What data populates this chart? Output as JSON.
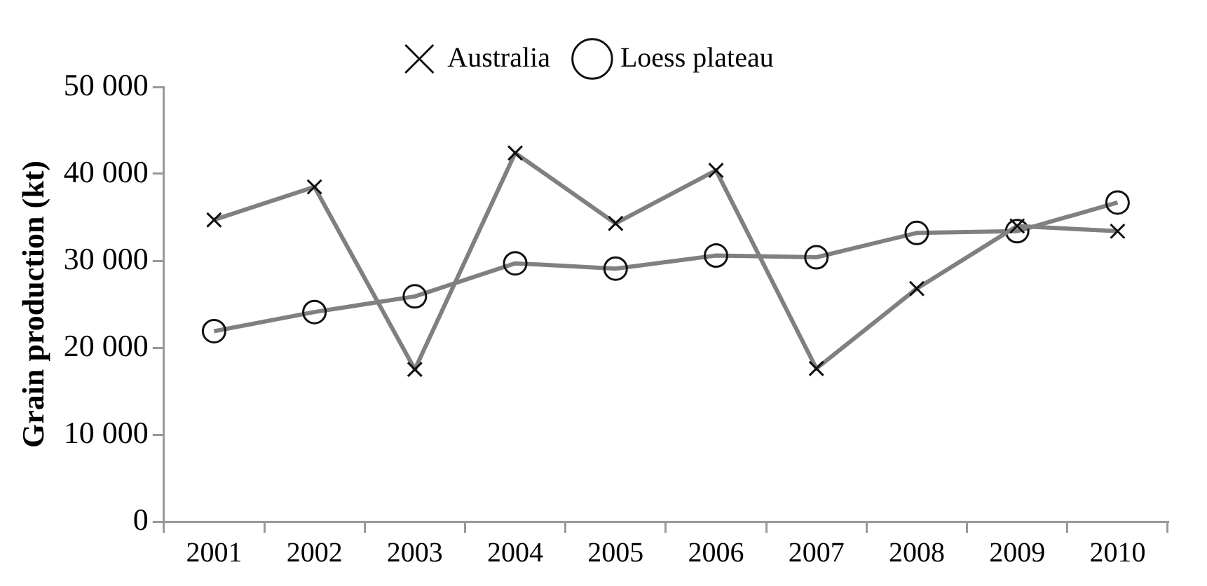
{
  "chart_data": {
    "type": "line",
    "ylabel": "Grain production (kt)",
    "categories": [
      "2001",
      "2002",
      "2003",
      "2004",
      "2005",
      "2006",
      "2007",
      "2008",
      "2009",
      "2010"
    ],
    "series": [
      {
        "name": "Australia",
        "color": "#808080",
        "marker": "cross",
        "values": [
          34700,
          38500,
          17500,
          42400,
          34300,
          40400,
          17600,
          26800,
          34000,
          33400
        ]
      },
      {
        "name": "Loess plateau",
        "color": "#808080",
        "marker": "circle",
        "values": [
          21900,
          24100,
          25900,
          29700,
          29100,
          30600,
          30400,
          33200,
          33400,
          36700
        ]
      }
    ],
    "ylim": [
      0,
      50000
    ],
    "yticks": [
      {
        "value": 0,
        "label": "0"
      },
      {
        "value": 10000,
        "label": "10 000"
      },
      {
        "value": 20000,
        "label": "20 000"
      },
      {
        "value": 30000,
        "label": "30 000"
      },
      {
        "value": 40000,
        "label": "40 000"
      },
      {
        "value": 50000,
        "label": "50 000"
      }
    ],
    "grid": false,
    "legend": "top",
    "line_style": "solid"
  }
}
